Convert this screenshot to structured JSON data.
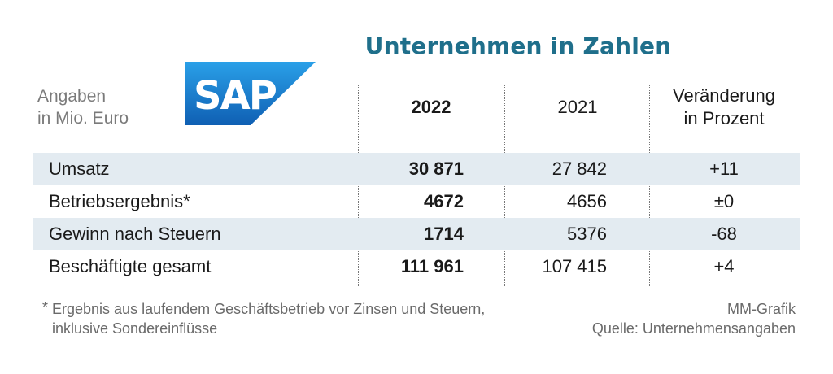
{
  "header": {
    "title": "Unternehmen in Zahlen",
    "logo_text": "SAP",
    "units_line1": "Angaben",
    "units_line2": "in Mio. Euro"
  },
  "columns": {
    "col_2022": "2022",
    "col_2021": "2021",
    "change_line1": "Veränderung",
    "change_line2": "in Prozent"
  },
  "rows": [
    {
      "label": "Umsatz",
      "v2022": "30 871",
      "v2021": "27 842",
      "change": "+11"
    },
    {
      "label": "Betriebsergebnis*",
      "v2022": "4672",
      "v2021": "4656",
      "change": "±0"
    },
    {
      "label": "Gewinn nach Steuern",
      "v2022": "1714",
      "v2021": "5376",
      "change": "-68"
    },
    {
      "label": "Beschäftigte gesamt",
      "v2022": "111 961",
      "v2021": "107 415",
      "change": "+4"
    }
  ],
  "footer": {
    "note_star": "*",
    "note_line1": "Ergebnis aus laufendem Geschäftsbetrieb vor Zinsen und Steuern,",
    "note_line2": "inklusive Sondereinflüsse",
    "credit": "MM-Grafik",
    "source": "Quelle: Unternehmensangaben"
  },
  "colors": {
    "title": "#1f6f8b",
    "logo_blue": "#1a73c7",
    "row_shade": "#e3ebf1"
  },
  "chart_data": {
    "type": "table",
    "title": "Unternehmen in Zahlen",
    "columns": [
      "",
      "2022",
      "2021",
      "Veränderung in Prozent"
    ],
    "rows": [
      [
        "Umsatz",
        30871,
        27842,
        11
      ],
      [
        "Betriebsergebnis*",
        4672,
        4656,
        0
      ],
      [
        "Gewinn nach Steuern",
        1714,
        5376,
        -68
      ],
      [
        "Beschäftigte gesamt",
        111961,
        107415,
        4
      ]
    ]
  }
}
